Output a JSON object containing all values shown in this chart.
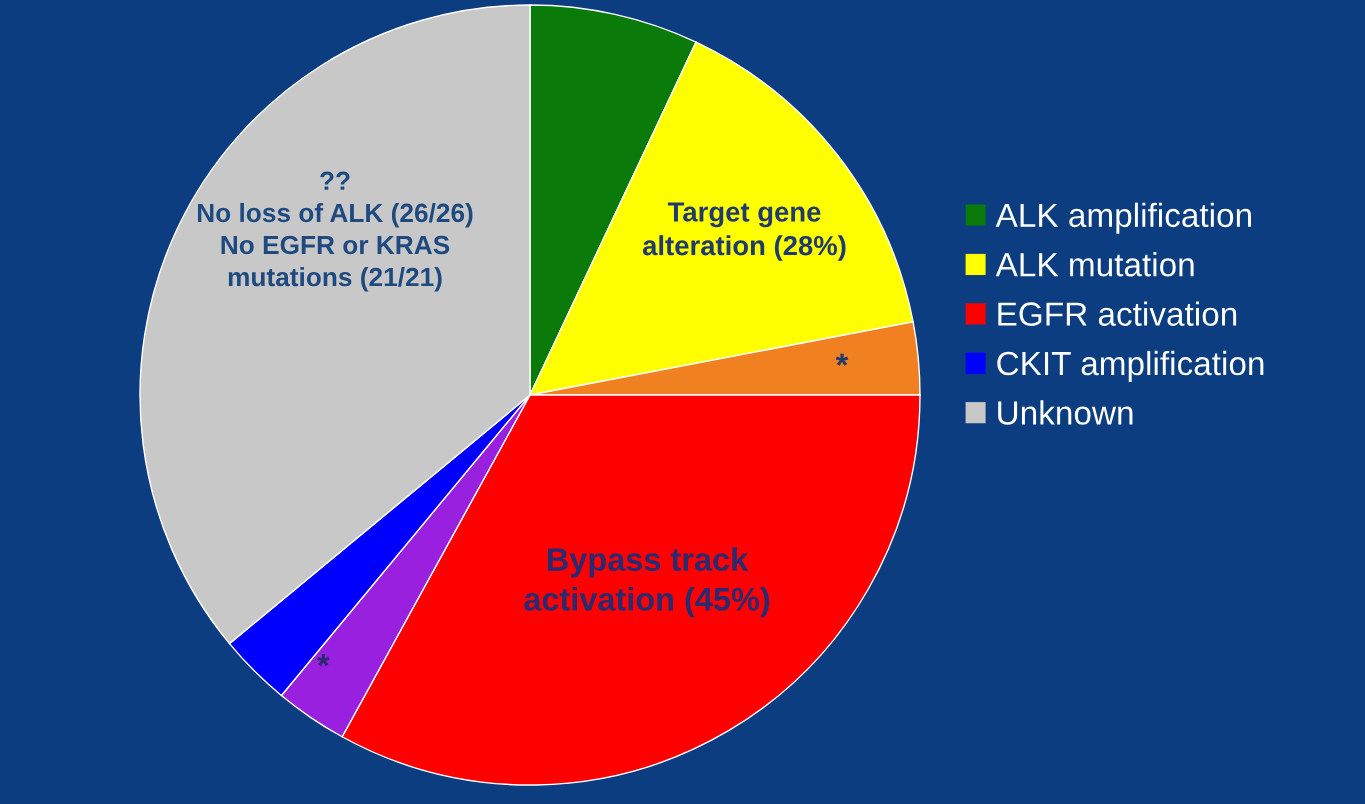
{
  "chart_data": {
    "type": "pie",
    "categories": [
      "ALK amplification",
      "ALK mutation",
      null,
      "EGFR activation",
      null,
      "CKIT amplification",
      "Unknown"
    ],
    "values": [
      7,
      15,
      3,
      33,
      3,
      3,
      36
    ],
    "colors": [
      "#0a7a0a",
      "#ffff00",
      "#f08020",
      "#ff0000",
      "#9a20e0",
      "#0000ff",
      "#c8c8c8"
    ],
    "legend": "right",
    "annotations": [
      "Target gene\nalteration (28%)",
      "*",
      "Bypass track\nactivation (45%)",
      "*",
      "??\nNo loss of ALK (26/26)\nNo EGFR or KRAS\nmutations (21/21)"
    ]
  }
}
